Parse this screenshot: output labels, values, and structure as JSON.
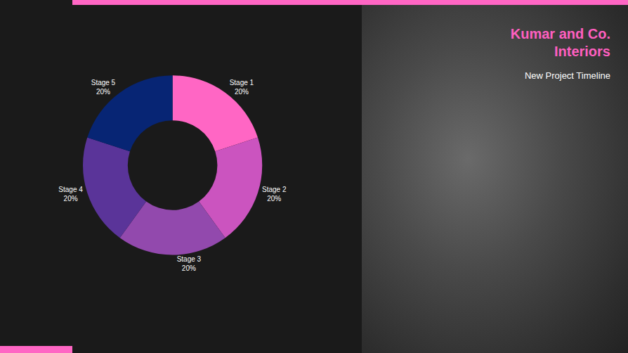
{
  "chart_data": {
    "type": "pie",
    "title": "Kumar and Co. Interiors",
    "subtitle": "New Project Timeline",
    "categories": [
      "Stage 1",
      "Stage 2",
      "Stage 3",
      "Stage 4",
      "Stage 5"
    ],
    "values": [
      20,
      20,
      20,
      20,
      20
    ],
    "value_labels": [
      "20%",
      "20%",
      "20%",
      "20%",
      "20%"
    ],
    "colors": [
      "#ff66c4",
      "#cb54bf",
      "#9249ad",
      "#5a3499",
      "#072574"
    ],
    "data_labels": true
  }
}
